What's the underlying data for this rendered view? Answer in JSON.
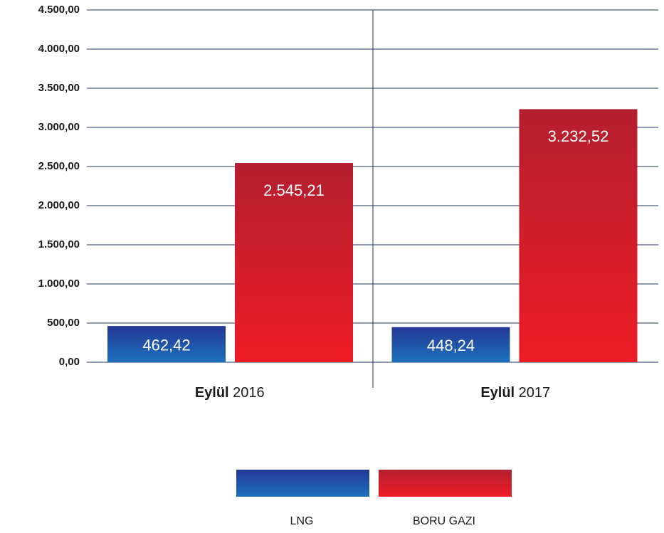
{
  "chart_data": {
    "type": "bar",
    "categories": [
      "Eylül 2016",
      "Eylül 2017"
    ],
    "series": [
      {
        "name": "LNG",
        "color": [
          "#243896",
          "#1b70bc"
        ],
        "values": [
          462.42,
          448.24
        ],
        "value_labels": [
          "462,42",
          "448,24"
        ]
      },
      {
        "name": "BORU GAZI",
        "color": [
          "#b41f2f",
          "#ee1c25"
        ],
        "values": [
          2545.21,
          3232.52
        ],
        "value_labels": [
          "2.545,21",
          "3.232,52"
        ]
      }
    ],
    "ylim": [
      0,
      4500
    ],
    "yticks": [
      {
        "value": 0,
        "label": "0,00"
      },
      {
        "value": 500,
        "label": "500,00"
      },
      {
        "value": 1000,
        "label": "1.000,00"
      },
      {
        "value": 1500,
        "label": "1.500,00"
      },
      {
        "value": 2000,
        "label": "2.000,00"
      },
      {
        "value": 2500,
        "label": "2.500,00"
      },
      {
        "value": 3000,
        "label": "3.000,00"
      },
      {
        "value": 3500,
        "label": "3.500,00"
      },
      {
        "value": 4000,
        "label": "4.000,00"
      },
      {
        "value": 4500,
        "label": "4.500,00"
      }
    ],
    "grid": true
  }
}
